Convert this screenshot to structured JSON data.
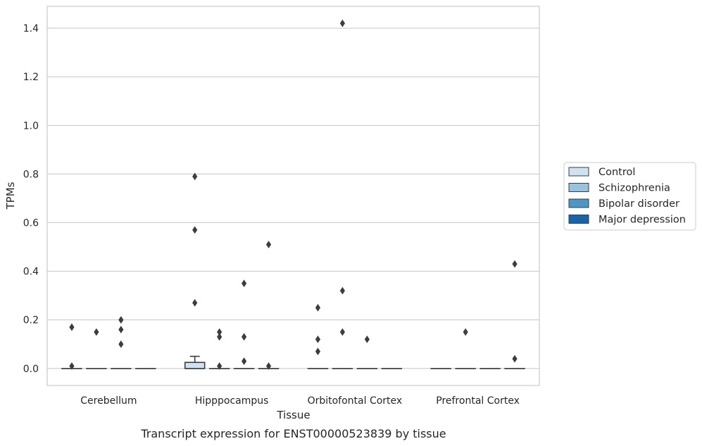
{
  "chart_data": {
    "type": "box",
    "caption": "Transcript expression for ENST00000523839 by tissue",
    "xlabel": "Tissue",
    "ylabel": "TPMs",
    "ylim": [
      -0.07,
      1.49
    ],
    "yticks": [
      0.0,
      0.2,
      0.4,
      0.6,
      0.8,
      1.0,
      1.2,
      1.4
    ],
    "ytick_labels": [
      "0.0",
      "0.2",
      "0.4",
      "0.6",
      "0.8",
      "1.0",
      "1.2",
      "1.4"
    ],
    "grid": "horizontal",
    "legend_position": "right",
    "categories": [
      "Cerebellum",
      "Hipppocampus",
      "Orbitofontal Cortex",
      "Prefrontal Cortex"
    ],
    "series": [
      {
        "name": "Control",
        "color": "#d0e1f2"
      },
      {
        "name": "Schizophrenia",
        "color": "#94c4df"
      },
      {
        "name": "Bipolar disorder",
        "color": "#4a98c9"
      },
      {
        "name": "Major depression",
        "color": "#1764ab"
      }
    ],
    "boxes": [
      {
        "category": 0,
        "series": 0,
        "q1": 0,
        "median": 0,
        "q3": 0,
        "whisker_low": 0,
        "whisker_high": 0,
        "outliers": [
          0.17,
          0.01
        ]
      },
      {
        "category": 0,
        "series": 1,
        "q1": 0,
        "median": 0,
        "q3": 0,
        "whisker_low": 0,
        "whisker_high": 0,
        "outliers": [
          0.15
        ]
      },
      {
        "category": 0,
        "series": 2,
        "q1": 0,
        "median": 0,
        "q3": 0,
        "whisker_low": 0,
        "whisker_high": 0,
        "outliers": [
          0.2,
          0.16,
          0.1
        ]
      },
      {
        "category": 0,
        "series": 3,
        "q1": 0,
        "median": 0,
        "q3": 0,
        "whisker_low": 0,
        "whisker_high": 0,
        "outliers": []
      },
      {
        "category": 1,
        "series": 0,
        "q1": 0,
        "median": 0,
        "q3": 0.025,
        "whisker_low": 0,
        "whisker_high": 0.05,
        "outliers": [
          0.79,
          0.57,
          0.27
        ]
      },
      {
        "category": 1,
        "series": 1,
        "q1": 0,
        "median": 0,
        "q3": 0,
        "whisker_low": 0,
        "whisker_high": 0,
        "outliers": [
          0.15,
          0.13,
          0.01
        ]
      },
      {
        "category": 1,
        "series": 2,
        "q1": 0,
        "median": 0,
        "q3": 0,
        "whisker_low": 0,
        "whisker_high": 0,
        "outliers": [
          0.35,
          0.13,
          0.03
        ]
      },
      {
        "category": 1,
        "series": 3,
        "q1": 0,
        "median": 0,
        "q3": 0,
        "whisker_low": 0,
        "whisker_high": 0,
        "outliers": [
          0.51,
          0.01
        ]
      },
      {
        "category": 2,
        "series": 0,
        "q1": 0,
        "median": 0,
        "q3": 0,
        "whisker_low": 0,
        "whisker_high": 0,
        "outliers": [
          0.25,
          0.12,
          0.07
        ]
      },
      {
        "category": 2,
        "series": 1,
        "q1": 0,
        "median": 0,
        "q3": 0,
        "whisker_low": 0,
        "whisker_high": 0,
        "outliers": [
          1.42,
          0.32,
          0.15
        ]
      },
      {
        "category": 2,
        "series": 2,
        "q1": 0,
        "median": 0,
        "q3": 0,
        "whisker_low": 0,
        "whisker_high": 0,
        "outliers": [
          0.12
        ]
      },
      {
        "category": 2,
        "series": 3,
        "q1": 0,
        "median": 0,
        "q3": 0,
        "whisker_low": 0,
        "whisker_high": 0,
        "outliers": []
      },
      {
        "category": 3,
        "series": 0,
        "q1": 0,
        "median": 0,
        "q3": 0,
        "whisker_low": 0,
        "whisker_high": 0,
        "outliers": []
      },
      {
        "category": 3,
        "series": 1,
        "q1": 0,
        "median": 0,
        "q3": 0,
        "whisker_low": 0,
        "whisker_high": 0,
        "outliers": [
          0.15
        ]
      },
      {
        "category": 3,
        "series": 2,
        "q1": 0,
        "median": 0,
        "q3": 0,
        "whisker_low": 0,
        "whisker_high": 0,
        "outliers": []
      },
      {
        "category": 3,
        "series": 3,
        "q1": 0,
        "median": 0,
        "q3": 0,
        "whisker_low": 0,
        "whisker_high": 0,
        "outliers": [
          0.43,
          0.04
        ]
      }
    ]
  }
}
